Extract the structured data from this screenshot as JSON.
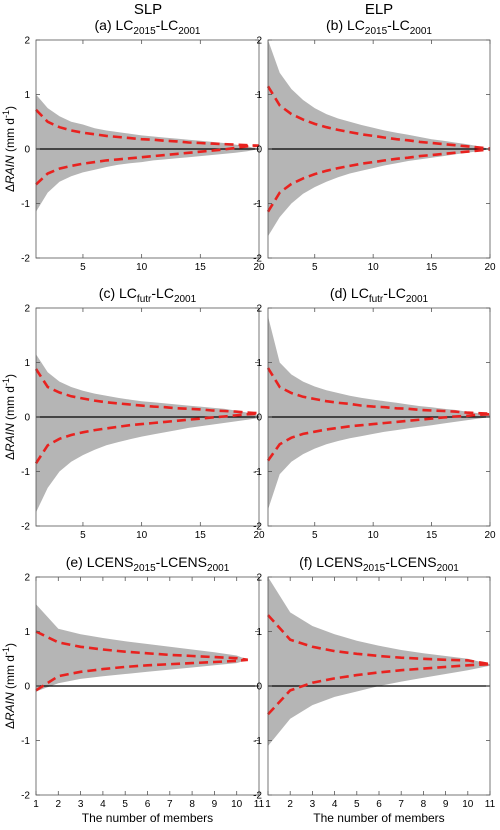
{
  "column_titles": [
    "SLP",
    "ELP"
  ],
  "chart_data": [
    {
      "type": "area",
      "title_parts": [
        [
          "(a) LC",
          "n"
        ],
        [
          "2015",
          "s"
        ],
        [
          "-LC",
          "n"
        ],
        [
          "2001",
          "s"
        ]
      ],
      "column_title": "SLP",
      "ylabel_parts": [
        [
          "Δ",
          "n"
        ],
        [
          "RAIN",
          "i"
        ],
        [
          " (mm d",
          "n"
        ],
        [
          "-1",
          "u"
        ],
        [
          ")",
          "n"
        ]
      ],
      "xlabel": "",
      "xlim": [
        1,
        20
      ],
      "ylim": [
        -2,
        2
      ],
      "xticks": [
        5,
        10,
        15,
        20
      ],
      "yticks": [
        -2,
        -1,
        0,
        1,
        2
      ],
      "x": [
        1,
        2,
        3,
        4,
        5,
        6,
        7,
        8,
        9,
        10,
        11,
        12,
        13,
        14,
        15,
        16,
        17,
        18,
        19,
        20
      ],
      "series": [
        {
          "kind": "band",
          "upper": [
            1.0,
            0.75,
            0.6,
            0.5,
            0.45,
            0.38,
            0.34,
            0.31,
            0.28,
            0.25,
            0.23,
            0.21,
            0.19,
            0.17,
            0.15,
            0.13,
            0.11,
            0.08,
            0.05,
            0.0
          ],
          "lower": [
            -1.15,
            -0.8,
            -0.6,
            -0.5,
            -0.43,
            -0.38,
            -0.33,
            -0.29,
            -0.26,
            -0.24,
            -0.21,
            -0.19,
            -0.17,
            -0.15,
            -0.13,
            -0.11,
            -0.09,
            -0.07,
            -0.04,
            0.0
          ]
        },
        {
          "kind": "dashed",
          "values": [
            0.72,
            0.5,
            0.4,
            0.34,
            0.3,
            0.27,
            0.24,
            0.22,
            0.2,
            0.18,
            0.17,
            0.15,
            0.14,
            0.12,
            0.11,
            0.1,
            0.09,
            0.08,
            0.07,
            0.06
          ]
        },
        {
          "kind": "dashed",
          "values": [
            -0.65,
            -0.45,
            -0.36,
            -0.31,
            -0.27,
            -0.24,
            -0.21,
            -0.19,
            -0.17,
            -0.15,
            -0.13,
            -0.11,
            -0.09,
            -0.07,
            -0.05,
            -0.03,
            -0.01,
            0.02,
            0.05,
            0.06
          ]
        }
      ]
    },
    {
      "type": "area",
      "title_parts": [
        [
          "(b) LC",
          "n"
        ],
        [
          "2015",
          "s"
        ],
        [
          "-LC",
          "n"
        ],
        [
          "2001",
          "s"
        ]
      ],
      "column_title": "ELP",
      "ylabel_parts": [],
      "xlabel": "",
      "xlim": [
        1,
        20
      ],
      "ylim": [
        -2,
        2
      ],
      "xticks": [
        5,
        10,
        15,
        20
      ],
      "yticks": [
        -2,
        -1,
        0,
        1,
        2
      ],
      "x": [
        1,
        2,
        3,
        4,
        5,
        6,
        7,
        8,
        9,
        10,
        11,
        12,
        13,
        14,
        15,
        16,
        17,
        18,
        19,
        20
      ],
      "series": [
        {
          "kind": "band",
          "upper": [
            2.0,
            1.4,
            1.1,
            0.9,
            0.75,
            0.64,
            0.56,
            0.5,
            0.44,
            0.39,
            0.34,
            0.3,
            0.26,
            0.22,
            0.18,
            0.15,
            0.12,
            0.09,
            0.05,
            0.0
          ],
          "lower": [
            -1.6,
            -1.25,
            -1.0,
            -0.82,
            -0.7,
            -0.6,
            -0.52,
            -0.45,
            -0.4,
            -0.35,
            -0.3,
            -0.26,
            -0.22,
            -0.19,
            -0.16,
            -0.13,
            -0.1,
            -0.07,
            -0.04,
            0.0
          ]
        },
        {
          "kind": "dashed",
          "values": [
            1.15,
            0.8,
            0.64,
            0.54,
            0.46,
            0.4,
            0.35,
            0.31,
            0.27,
            0.24,
            0.21,
            0.18,
            0.16,
            0.13,
            0.11,
            0.09,
            0.07,
            0.05,
            0.03,
            0.01
          ]
        },
        {
          "kind": "dashed",
          "values": [
            -1.15,
            -0.8,
            -0.64,
            -0.54,
            -0.46,
            -0.4,
            -0.35,
            -0.31,
            -0.27,
            -0.24,
            -0.21,
            -0.18,
            -0.16,
            -0.13,
            -0.11,
            -0.09,
            -0.07,
            -0.05,
            -0.03,
            -0.01
          ]
        }
      ]
    },
    {
      "type": "area",
      "title_parts": [
        [
          "(c) LC",
          "n"
        ],
        [
          "futr",
          "s"
        ],
        [
          "-LC",
          "n"
        ],
        [
          "2001",
          "s"
        ]
      ],
      "column_title": "",
      "ylabel_parts": [
        [
          "Δ",
          "n"
        ],
        [
          "RAIN",
          "i"
        ],
        [
          " (mm d",
          "n"
        ],
        [
          "-1",
          "u"
        ],
        [
          ")",
          "n"
        ]
      ],
      "xlabel": "",
      "xlim": [
        1,
        20
      ],
      "ylim": [
        -2,
        2
      ],
      "xticks": [
        5,
        10,
        15,
        20
      ],
      "yticks": [
        -2,
        -1,
        0,
        1,
        2
      ],
      "x": [
        1,
        2,
        3,
        4,
        5,
        6,
        7,
        8,
        9,
        10,
        11,
        12,
        13,
        14,
        15,
        16,
        17,
        18,
        19,
        20
      ],
      "series": [
        {
          "kind": "band",
          "upper": [
            1.15,
            0.82,
            0.65,
            0.55,
            0.48,
            0.43,
            0.39,
            0.35,
            0.32,
            0.29,
            0.27,
            0.25,
            0.23,
            0.21,
            0.19,
            0.17,
            0.15,
            0.12,
            0.08,
            0.03
          ],
          "lower": [
            -1.75,
            -1.3,
            -1.0,
            -0.82,
            -0.7,
            -0.6,
            -0.52,
            -0.46,
            -0.41,
            -0.36,
            -0.32,
            -0.28,
            -0.24,
            -0.2,
            -0.17,
            -0.14,
            -0.11,
            -0.08,
            -0.05,
            -0.02
          ]
        },
        {
          "kind": "dashed",
          "values": [
            0.88,
            0.55,
            0.45,
            0.38,
            0.34,
            0.3,
            0.27,
            0.25,
            0.23,
            0.21,
            0.19,
            0.18,
            0.16,
            0.15,
            0.14,
            0.12,
            0.11,
            0.1,
            0.08,
            0.07
          ]
        },
        {
          "kind": "dashed",
          "values": [
            -0.85,
            -0.52,
            -0.4,
            -0.33,
            -0.28,
            -0.24,
            -0.21,
            -0.18,
            -0.15,
            -0.13,
            -0.11,
            -0.09,
            -0.07,
            -0.05,
            -0.03,
            -0.01,
            0.01,
            0.03,
            0.05,
            0.06
          ]
        }
      ]
    },
    {
      "type": "area",
      "title_parts": [
        [
          "(d) LC",
          "n"
        ],
        [
          "futr",
          "s"
        ],
        [
          "-LC",
          "n"
        ],
        [
          "2001",
          "s"
        ]
      ],
      "column_title": "",
      "ylabel_parts": [],
      "xlabel": "",
      "xlim": [
        1,
        20
      ],
      "ylim": [
        -2,
        2
      ],
      "xticks": [
        5,
        10,
        15,
        20
      ],
      "yticks": [
        -2,
        -1,
        0,
        1,
        2
      ],
      "x": [
        1,
        2,
        3,
        4,
        5,
        6,
        7,
        8,
        9,
        10,
        11,
        12,
        13,
        14,
        15,
        16,
        17,
        18,
        19,
        20
      ],
      "series": [
        {
          "kind": "band",
          "upper": [
            1.85,
            1.0,
            0.78,
            0.65,
            0.56,
            0.49,
            0.44,
            0.39,
            0.35,
            0.32,
            0.29,
            0.26,
            0.23,
            0.2,
            0.18,
            0.15,
            0.13,
            0.1,
            0.07,
            0.04
          ],
          "lower": [
            -1.7,
            -1.05,
            -0.82,
            -0.68,
            -0.58,
            -0.5,
            -0.44,
            -0.39,
            -0.35,
            -0.31,
            -0.27,
            -0.24,
            -0.21,
            -0.18,
            -0.15,
            -0.12,
            -0.09,
            -0.06,
            -0.03,
            0.0
          ]
        },
        {
          "kind": "dashed",
          "values": [
            0.9,
            0.55,
            0.44,
            0.37,
            0.33,
            0.29,
            0.26,
            0.24,
            0.21,
            0.19,
            0.18,
            0.16,
            0.15,
            0.13,
            0.12,
            0.11,
            0.1,
            0.08,
            0.07,
            0.06
          ]
        },
        {
          "kind": "dashed",
          "values": [
            -0.8,
            -0.5,
            -0.38,
            -0.31,
            -0.27,
            -0.23,
            -0.2,
            -0.17,
            -0.15,
            -0.13,
            -0.11,
            -0.09,
            -0.07,
            -0.05,
            -0.03,
            -0.01,
            0.01,
            0.02,
            0.04,
            0.05
          ]
        }
      ]
    },
    {
      "type": "area",
      "title_parts": [
        [
          "(e) LCENS",
          "n"
        ],
        [
          "2015",
          "s"
        ],
        [
          "-LCENS",
          "n"
        ],
        [
          "2001",
          "s"
        ]
      ],
      "column_title": "",
      "ylabel_parts": [
        [
          "Δ",
          "n"
        ],
        [
          "RAIN",
          "i"
        ],
        [
          " (mm d",
          "n"
        ],
        [
          "-1",
          "u"
        ],
        [
          ")",
          "n"
        ]
      ],
      "xlabel": "The number of members",
      "xlim": [
        1,
        11
      ],
      "ylim": [
        -2,
        2
      ],
      "xticks": [
        1,
        2,
        3,
        4,
        5,
        6,
        7,
        8,
        9,
        10,
        11
      ],
      "yticks": [
        -2,
        -1,
        0,
        1,
        2
      ],
      "x": [
        1,
        2,
        3,
        4,
        5,
        6,
        7,
        8,
        9,
        10,
        10.5
      ],
      "series": [
        {
          "kind": "band",
          "upper": [
            1.5,
            1.05,
            0.95,
            0.88,
            0.82,
            0.77,
            0.72,
            0.67,
            0.62,
            0.56,
            0.48
          ],
          "lower": [
            -0.1,
            0.05,
            0.13,
            0.18,
            0.22,
            0.26,
            0.3,
            0.34,
            0.38,
            0.42,
            0.48
          ]
        },
        {
          "kind": "dashed",
          "values": [
            1.0,
            0.8,
            0.72,
            0.67,
            0.63,
            0.6,
            0.57,
            0.55,
            0.53,
            0.51,
            0.48
          ]
        },
        {
          "kind": "dashed",
          "values": [
            -0.08,
            0.18,
            0.26,
            0.31,
            0.35,
            0.38,
            0.4,
            0.42,
            0.44,
            0.46,
            0.48
          ]
        }
      ]
    },
    {
      "type": "area",
      "title_parts": [
        [
          "(f) LCENS",
          "n"
        ],
        [
          "2015",
          "s"
        ],
        [
          "-LCENS",
          "n"
        ],
        [
          "2001",
          "s"
        ]
      ],
      "column_title": "",
      "ylabel_parts": [],
      "xlabel": "The number of members",
      "xlim": [
        1,
        11
      ],
      "ylim": [
        -2,
        2
      ],
      "xticks": [
        1,
        2,
        3,
        4,
        5,
        6,
        7,
        8,
        9,
        10,
        11
      ],
      "yticks": [
        -2,
        -1,
        0,
        1,
        2
      ],
      "x": [
        1,
        2,
        3,
        4,
        5,
        6,
        7,
        8,
        9,
        10,
        11
      ],
      "series": [
        {
          "kind": "band",
          "upper": [
            2.0,
            1.35,
            1.1,
            0.95,
            0.83,
            0.74,
            0.66,
            0.6,
            0.55,
            0.5,
            0.4
          ],
          "lower": [
            -1.1,
            -0.6,
            -0.35,
            -0.2,
            -0.1,
            0.0,
            0.08,
            0.15,
            0.22,
            0.29,
            0.37
          ]
        },
        {
          "kind": "dashed",
          "values": [
            1.3,
            0.85,
            0.72,
            0.64,
            0.59,
            0.55,
            0.52,
            0.5,
            0.48,
            0.47,
            0.4
          ]
        },
        {
          "kind": "dashed",
          "values": [
            -0.52,
            -0.08,
            0.06,
            0.14,
            0.2,
            0.25,
            0.29,
            0.32,
            0.35,
            0.38,
            0.4
          ]
        }
      ]
    }
  ],
  "colors": {
    "band": "#b5b5b5",
    "dashed": "#e8221f",
    "zero_line": "#000000",
    "frame": "#555555"
  }
}
